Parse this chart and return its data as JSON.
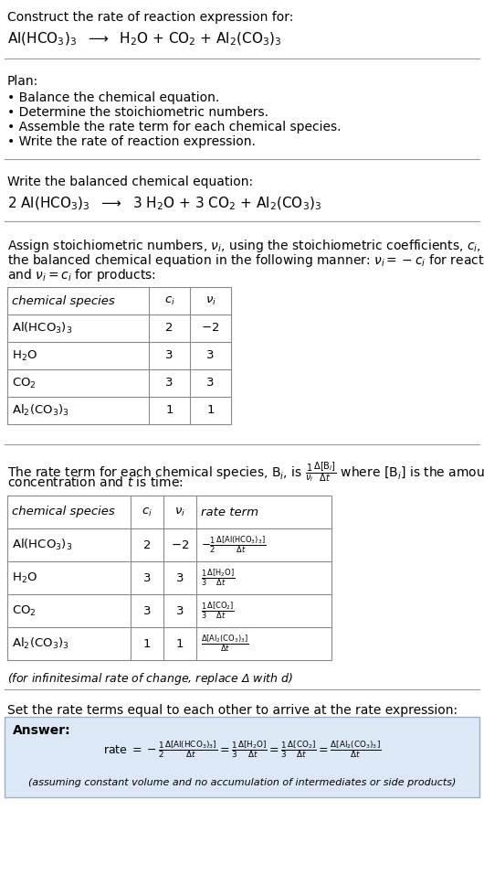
{
  "bg_color": "#ffffff",
  "title_line1": "Construct the rate of reaction expression for:",
  "reaction_unbalanced": "Al(HCO$_3$)$_3$  $\\longrightarrow$  H$_2$O + CO$_2$ + Al$_2$(CO$_3$)$_3$",
  "plan_header": "Plan:",
  "plan_items": [
    "• Balance the chemical equation.",
    "• Determine the stoichiometric numbers.",
    "• Assemble the rate term for each chemical species.",
    "• Write the rate of reaction expression."
  ],
  "balanced_header": "Write the balanced chemical equation:",
  "reaction_balanced": "2 Al(HCO$_3$)$_3$  $\\longrightarrow$  3 H$_2$O + 3 CO$_2$ + Al$_2$(CO$_3$)$_3$",
  "stoich_intro_lines": [
    "Assign stoichiometric numbers, $\\nu_i$, using the stoichiometric coefficients, $c_i$, from",
    "the balanced chemical equation in the following manner: $\\nu_i = -c_i$ for reactants",
    "and $\\nu_i = c_i$ for products:"
  ],
  "table1_headers": [
    "chemical species",
    "$c_i$",
    "$\\nu_i$"
  ],
  "table1_rows": [
    [
      "Al(HCO$_3$)$_3$",
      "2",
      "$-$2"
    ],
    [
      "H$_2$O",
      "3",
      "3"
    ],
    [
      "CO$_2$",
      "3",
      "3"
    ],
    [
      "Al$_2$(CO$_3$)$_3$",
      "1",
      "1"
    ]
  ],
  "rate_term_intro_lines": [
    "The rate term for each chemical species, B$_i$, is $\\frac{1}{\\nu_i}\\frac{\\Delta[\\mathrm{B}_i]}{\\Delta t}$ where [B$_i$] is the amount",
    "concentration and $t$ is time:"
  ],
  "table2_headers": [
    "chemical species",
    "$c_i$",
    "$\\nu_i$",
    "rate term"
  ],
  "table2_rows": [
    [
      "Al(HCO$_3$)$_3$",
      "2",
      "$-$2",
      "$-\\frac{1}{2}\\frac{\\Delta[\\mathrm{Al(HCO_3)_3}]}{\\Delta t}$"
    ],
    [
      "H$_2$O",
      "3",
      "3",
      "$\\frac{1}{3}\\frac{\\Delta[\\mathrm{H_2O}]}{\\Delta t}$"
    ],
    [
      "CO$_2$",
      "3",
      "3",
      "$\\frac{1}{3}\\frac{\\Delta[\\mathrm{CO_2}]}{\\Delta t}$"
    ],
    [
      "Al$_2$(CO$_3$)$_3$",
      "1",
      "1",
      "$\\frac{\\Delta[\\mathrm{Al_2(CO_3)_3}]}{\\Delta t}$"
    ]
  ],
  "infinitesimal_note": "(for infinitesimal rate of change, replace Δ with $d$)",
  "set_equal_header": "Set the rate terms equal to each other to arrive at the rate expression:",
  "answer_box_color": "#dce8f5",
  "answer_label": "Answer:",
  "rate_expression": "rate $= -\\frac{1}{2}\\frac{\\Delta[\\mathrm{Al(HCO_3)_3}]}{\\Delta t} = \\frac{1}{3}\\frac{\\Delta[\\mathrm{H_2O}]}{\\Delta t} = \\frac{1}{3}\\frac{\\Delta[\\mathrm{CO_2}]}{\\Delta t} = \\frac{\\Delta[\\mathrm{Al_2(CO_3)_3}]}{\\Delta t}$",
  "assumption_note": "(assuming constant volume and no accumulation of intermediates or side products)",
  "fs": 10,
  "fs_sm": 9.5,
  "fs_eq": 11
}
